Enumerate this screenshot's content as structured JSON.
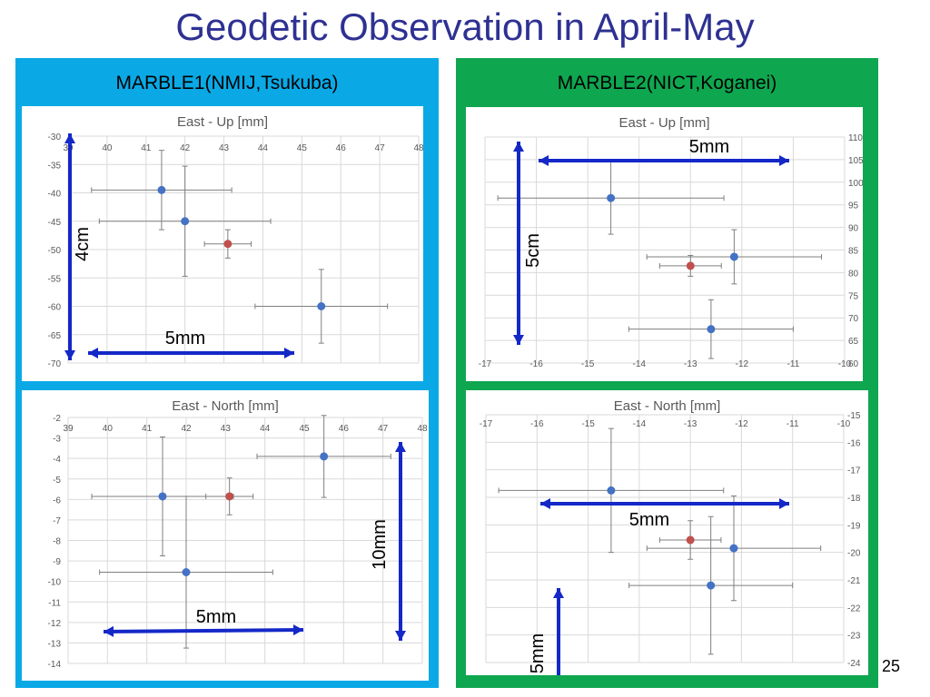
{
  "slide": {
    "title": "Geodetic Observation in April-May",
    "page_number": "25",
    "left_panel_title": "MARBLE1(NMIJ,Tsukuba)",
    "right_panel_title": "MARBLE2(NICT,Koganei)"
  },
  "colors": {
    "title": "#2E3192",
    "left_panel": "#0aa9e6",
    "right_panel": "#0fa650",
    "point_blue": "#4472C4",
    "point_red": "#C0504D",
    "arrow": "#1428c8"
  },
  "chart_data": [
    {
      "id": "m1-east-up",
      "type": "scatter",
      "title": "East - Up [mm]",
      "xlim": [
        39,
        48
      ],
      "ylim": [
        -70,
        -30
      ],
      "x_ticks": [
        39,
        40,
        41,
        42,
        43,
        44,
        45,
        46,
        47,
        48
      ],
      "y_ticks": [
        -30,
        -35,
        -40,
        -45,
        -50,
        -55,
        -60,
        -65,
        -70
      ],
      "grid": true,
      "points": [
        {
          "x": 41.4,
          "y": -39.5,
          "xerr": 1.8,
          "yerr": 7.0,
          "color": "blue"
        },
        {
          "x": 42.0,
          "y": -45.0,
          "xerr": 2.2,
          "yerr": 9.7,
          "color": "blue"
        },
        {
          "x": 43.1,
          "y": -49.0,
          "xerr": 0.6,
          "yerr": 2.5,
          "color": "red"
        },
        {
          "x": 45.5,
          "y": -60.0,
          "xerr": 1.7,
          "yerr": 6.5,
          "color": "blue"
        }
      ],
      "annotations": [
        {
          "text": "4cm",
          "orientation": "vertical"
        },
        {
          "text": "5mm",
          "orientation": "horizontal"
        }
      ]
    },
    {
      "id": "m1-east-north",
      "type": "scatter",
      "title": "East - North  [mm]",
      "xlim": [
        39,
        48
      ],
      "ylim": [
        -14,
        -2
      ],
      "x_ticks": [
        39,
        40,
        41,
        42,
        43,
        44,
        45,
        46,
        47,
        48
      ],
      "y_ticks": [
        -2,
        -3,
        -4,
        -5,
        -6,
        -7,
        -8,
        -9,
        -10,
        -11,
        -12,
        -13,
        -14
      ],
      "grid": true,
      "points": [
        {
          "x": 41.4,
          "y": -5.85,
          "xerr": 1.8,
          "yerr": 2.9,
          "color": "blue"
        },
        {
          "x": 43.1,
          "y": -5.85,
          "xerr": 0.6,
          "yerr": 0.9,
          "color": "red"
        },
        {
          "x": 45.5,
          "y": -3.9,
          "xerr": 1.7,
          "yerr": 2.0,
          "color": "blue"
        },
        {
          "x": 42.0,
          "y": -9.55,
          "xerr": 2.2,
          "yerr": 3.7,
          "color": "blue"
        }
      ],
      "annotations": [
        {
          "text": "10mm",
          "orientation": "vertical"
        },
        {
          "text": "5mm",
          "orientation": "horizontal"
        }
      ]
    },
    {
      "id": "m2-east-up",
      "type": "scatter",
      "title": "East - Up [mm]",
      "xlim": [
        -17,
        -10
      ],
      "ylim": [
        60,
        110
      ],
      "x_ticks": [
        -17,
        -16,
        -15,
        -14,
        -13,
        -12,
        -11,
        -10
      ],
      "y_ticks": [
        110,
        105,
        100,
        95,
        90,
        85,
        80,
        75,
        70,
        65,
        60
      ],
      "grid": true,
      "points": [
        {
          "x": -14.55,
          "y": 96.5,
          "xerr": 2.2,
          "yerr": 8.0,
          "color": "blue"
        },
        {
          "x": -12.15,
          "y": 83.5,
          "xerr": 1.7,
          "yerr": 6.0,
          "color": "blue"
        },
        {
          "x": -13.0,
          "y": 81.5,
          "xerr": 0.6,
          "yerr": 2.3,
          "color": "red"
        },
        {
          "x": -12.6,
          "y": 67.5,
          "xerr": 1.6,
          "yerr": 6.5,
          "color": "blue"
        }
      ],
      "annotations": [
        {
          "text": "5mm",
          "orientation": "horizontal"
        },
        {
          "text": "5cm",
          "orientation": "vertical"
        }
      ]
    },
    {
      "id": "m2-east-north",
      "type": "scatter",
      "title": "East - North  [mm]",
      "xlim": [
        -17,
        -10
      ],
      "ylim": [
        -24,
        -15
      ],
      "x_ticks": [
        -17,
        -16,
        -15,
        -14,
        -13,
        -12,
        -11,
        -10
      ],
      "y_ticks": [
        -15,
        -16,
        -17,
        -18,
        -19,
        -20,
        -21,
        -22,
        -23,
        -24
      ],
      "grid": true,
      "points": [
        {
          "x": -14.55,
          "y": -17.75,
          "xerr": 2.2,
          "yerr": 2.25,
          "color": "blue"
        },
        {
          "x": -13.0,
          "y": -19.55,
          "xerr": 0.6,
          "yerr": 0.7,
          "color": "red"
        },
        {
          "x": -12.15,
          "y": -19.85,
          "xerr": 1.7,
          "yerr": 1.9,
          "color": "blue"
        },
        {
          "x": -12.6,
          "y": -21.2,
          "xerr": 1.6,
          "yerr": 2.5,
          "color": "blue"
        }
      ],
      "annotations": [
        {
          "text": "5mm",
          "orientation": "horizontal"
        },
        {
          "text": "5mm",
          "orientation": "vertical"
        }
      ]
    }
  ]
}
